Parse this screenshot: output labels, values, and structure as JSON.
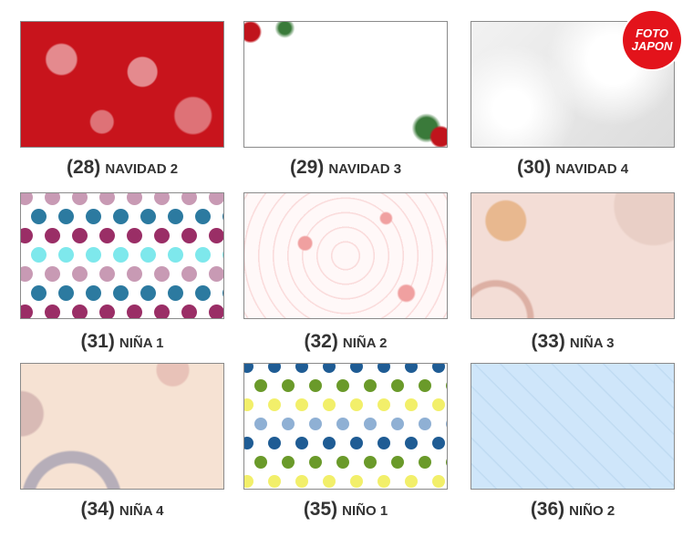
{
  "logo": {
    "line1": "FOTO",
    "line2": "JAPON",
    "color": "#e3131b"
  },
  "items": [
    {
      "number": "(28)",
      "name": "NAVIDAD 2",
      "pattern": "red-christmas",
      "colors": [
        "#c8141c",
        "#ffffff"
      ]
    },
    {
      "number": "(29)",
      "name": "NAVIDAD 3",
      "pattern": "white-christmas-corners",
      "colors": [
        "#ffffff",
        "#c0141c",
        "#3a7a3a"
      ]
    },
    {
      "number": "(30)",
      "name": "NAVIDAD 4",
      "pattern": "white-bokeh",
      "colors": [
        "#f2f2f2",
        "#dcdcdc"
      ]
    },
    {
      "number": "(31)",
      "name": "NIÑA 1",
      "pattern": "polka-dots",
      "colors": [
        "#c89ab4",
        "#7ee8ec",
        "#9a2e66",
        "#2c7aa0"
      ]
    },
    {
      "number": "(32)",
      "name": "NIÑA 2",
      "pattern": "hearts-swirls",
      "colors": [
        "#fff8f8",
        "#f0a0a0"
      ]
    },
    {
      "number": "(33)",
      "name": "NIÑA 3",
      "pattern": "boho-sun",
      "colors": [
        "#f3ddd6",
        "#e8b88f",
        "#c98878"
      ]
    },
    {
      "number": "(34)",
      "name": "NIÑA 4",
      "pattern": "boho-floral",
      "colors": [
        "#f6e2d3",
        "#c9a6a6",
        "#8c8ca8"
      ]
    },
    {
      "number": "(35)",
      "name": "NIÑO 1",
      "pattern": "polka-dots",
      "colors": [
        "#1f5c94",
        "#8fb0d4",
        "#f2ef6a",
        "#6a9a2a"
      ]
    },
    {
      "number": "(36)",
      "name": "NIÑO 2",
      "pattern": "baby-doodles",
      "colors": [
        "#cfe6fa",
        "#a9cbe6"
      ]
    }
  ]
}
